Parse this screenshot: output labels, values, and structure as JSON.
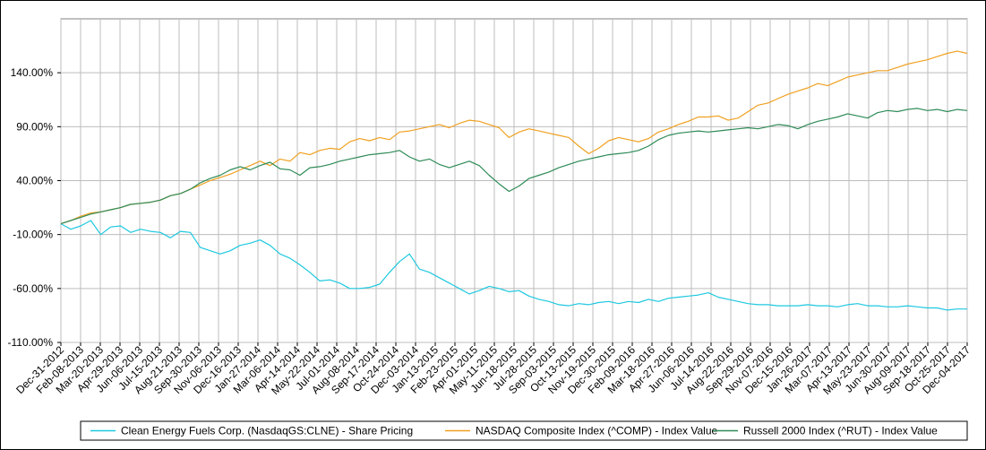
{
  "chart_data": {
    "type": "line",
    "title": "",
    "xlabel": "",
    "ylabel": "",
    "ylim": [
      -110,
      190
    ],
    "y_ticks": [
      {
        "value": 140,
        "label": "140.00%"
      },
      {
        "value": 90,
        "label": "90.00%"
      },
      {
        "value": 40,
        "label": "40.00%"
      },
      {
        "value": -10,
        "label": "-10.00%"
      },
      {
        "value": -60,
        "label": "-60.00%"
      },
      {
        "value": -110,
        "label": "-110.00%"
      }
    ],
    "x_labels": [
      "Dec-31-2012",
      "Feb-08-2013",
      "Mar-20-2013",
      "Apr-29-2013",
      "Jun-06-2013",
      "Jul-15-2013",
      "Aug-21-2013",
      "Sep-30-2013",
      "Nov-06-2013",
      "Dec-16-2013",
      "Jan-27-2014",
      "Mar-06-2014",
      "Apr-14-2014",
      "May-22-2014",
      "Jul-01-2014",
      "Aug-08-2014",
      "Sep-17-2014",
      "Oct-24-2014",
      "Dec-03-2014",
      "Jan-13-2015",
      "Feb-23-2015",
      "Apr-01-2015",
      "May-11-2015",
      "Jun-18-2015",
      "Jul-28-2015",
      "Sep-03-2015",
      "Oct-13-2015",
      "Nov-19-2015",
      "Dec-30-2015",
      "Feb-09-2016",
      "Mar-18-2016",
      "Apr-27-2016",
      "Jun-06-2016",
      "Jul-14-2016",
      "Aug-22-2016",
      "Sep-29-2016",
      "Nov-07-2016",
      "Dec-15-2016",
      "Jan-26-2017",
      "Mar-07-2017",
      "Apr-13-2017",
      "May-23-2017",
      "Jun-30-2017",
      "Aug-09-2017",
      "Sep-18-2017",
      "Oct-25-2017",
      "Dec-04-2017"
    ],
    "grid": true,
    "legend_position": "bottom",
    "series": [
      {
        "name": "Clean Energy Fuels Corp. (NasdaqGS:CLNE) - Share Pricing",
        "color": "#1ec8e0",
        "values": [
          0,
          -5,
          -2,
          3,
          -10,
          -3,
          -2,
          -8,
          -5,
          -7,
          -8,
          -13,
          -7,
          -8,
          -22,
          -25,
          -28,
          -25,
          -20,
          -18,
          -15,
          -20,
          -28,
          -32,
          -38,
          -45,
          -53,
          -52,
          -55,
          -60,
          -60,
          -59,
          -56,
          -45,
          -35,
          -28,
          -42,
          -45,
          -50,
          -55,
          -60,
          -65,
          -62,
          -58,
          -60,
          -63,
          -62,
          -67,
          -70,
          -72,
          -75,
          -76,
          -74,
          -75,
          -73,
          -72,
          -74,
          -72,
          -73,
          -70,
          -72,
          -69,
          -68,
          -67,
          -66,
          -64,
          -68,
          -70,
          -72,
          -74,
          -75,
          -75,
          -76,
          -76,
          -76,
          -75,
          -76,
          -76,
          -77,
          -75,
          -74,
          -76,
          -76,
          -77,
          -77,
          -76,
          -77,
          -78,
          -78,
          -80,
          -79,
          -79
        ]
      },
      {
        "name": "NASDAQ Composite Index (^COMP) - Index Value",
        "color": "#f0a020",
        "values": [
          0,
          3,
          7,
          10,
          11,
          13,
          15,
          18,
          19,
          20,
          22,
          26,
          28,
          32,
          36,
          40,
          43,
          46,
          50,
          54,
          58,
          54,
          60,
          58,
          66,
          64,
          68,
          70,
          69,
          76,
          79,
          77,
          80,
          78,
          85,
          86,
          88,
          90,
          92,
          89,
          93,
          96,
          95,
          92,
          89,
          80,
          85,
          88,
          86,
          84,
          82,
          80,
          72,
          65,
          70,
          77,
          80,
          78,
          76,
          79,
          85,
          88,
          92,
          95,
          99,
          99,
          100,
          96,
          98,
          104,
          110,
          112,
          116,
          120,
          123,
          126,
          130,
          128,
          132,
          136,
          138,
          140,
          142,
          142,
          145,
          148,
          150,
          152,
          155,
          158,
          160,
          158
        ]
      },
      {
        "name": "Russell 2000 Index (^RUT) - Index Value",
        "color": "#2e8b57",
        "values": [
          0,
          3,
          6,
          9,
          11,
          13,
          15,
          18,
          19,
          20,
          22,
          26,
          28,
          32,
          38,
          42,
          45,
          50,
          53,
          50,
          54,
          57,
          51,
          50,
          45,
          52,
          53,
          55,
          58,
          60,
          62,
          64,
          65,
          66,
          68,
          62,
          58,
          60,
          55,
          52,
          55,
          58,
          54,
          45,
          37,
          30,
          35,
          42,
          45,
          48,
          52,
          55,
          58,
          60,
          62,
          64,
          65,
          66,
          68,
          72,
          78,
          82,
          84,
          85,
          86,
          85,
          86,
          87,
          88,
          89,
          88,
          90,
          92,
          91,
          88,
          92,
          95,
          97,
          99,
          102,
          100,
          98,
          103,
          105,
          104,
          106,
          107,
          105,
          106,
          104,
          106,
          105
        ]
      }
    ]
  }
}
